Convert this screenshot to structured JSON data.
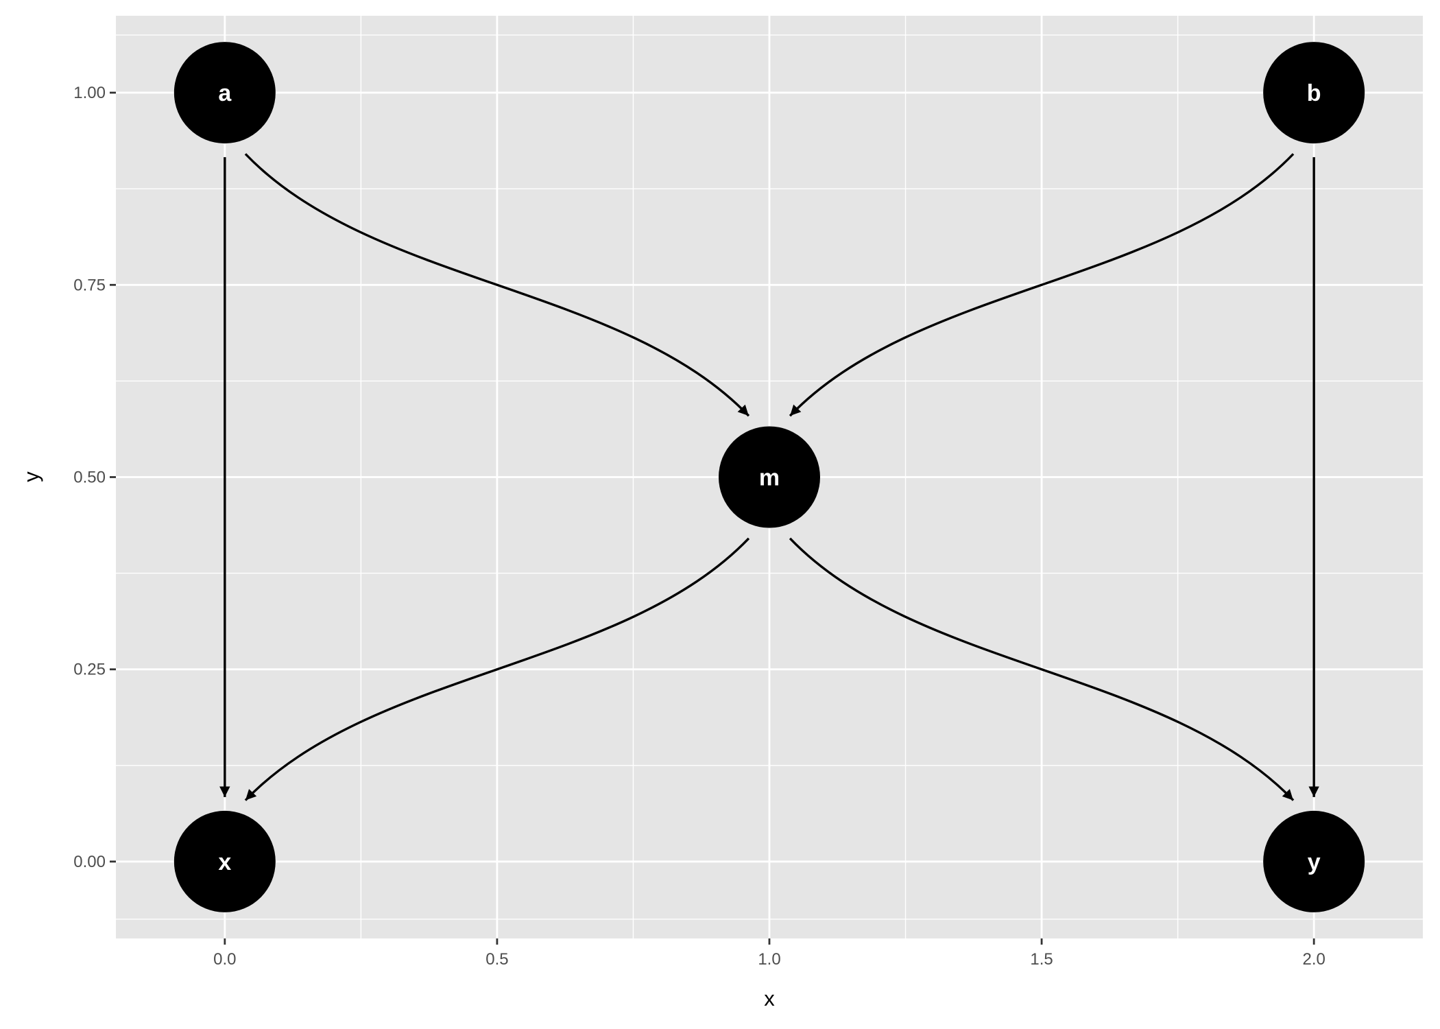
{
  "chart_data": {
    "type": "dag",
    "xlabel": "x",
    "ylabel": "y",
    "xlim": [
      -0.2,
      2.2
    ],
    "ylim": [
      -0.1,
      1.1
    ],
    "x_ticks": [
      "0.0",
      "0.5",
      "1.0",
      "1.5",
      "2.0"
    ],
    "x_tick_values": [
      0,
      0.5,
      1,
      1.5,
      2
    ],
    "y_ticks": [
      "0.00",
      "0.25",
      "0.50",
      "0.75",
      "1.00"
    ],
    "y_tick_values": [
      0,
      0.25,
      0.5,
      0.75,
      1
    ],
    "grid": true,
    "panel_background": "#e5e5e5",
    "node_color": "#000000",
    "node_label_color": "#ffffff",
    "nodes": [
      {
        "name": "a",
        "x": 0,
        "y": 1
      },
      {
        "name": "b",
        "x": 2,
        "y": 1
      },
      {
        "name": "m",
        "x": 1,
        "y": 0.5
      },
      {
        "name": "x",
        "x": 0,
        "y": 0
      },
      {
        "name": "y",
        "x": 2,
        "y": 0
      }
    ],
    "edges": [
      {
        "from": "a",
        "to": "x"
      },
      {
        "from": "a",
        "to": "m"
      },
      {
        "from": "b",
        "to": "m"
      },
      {
        "from": "b",
        "to": "y"
      },
      {
        "from": "m",
        "to": "x"
      },
      {
        "from": "m",
        "to": "y"
      }
    ]
  }
}
